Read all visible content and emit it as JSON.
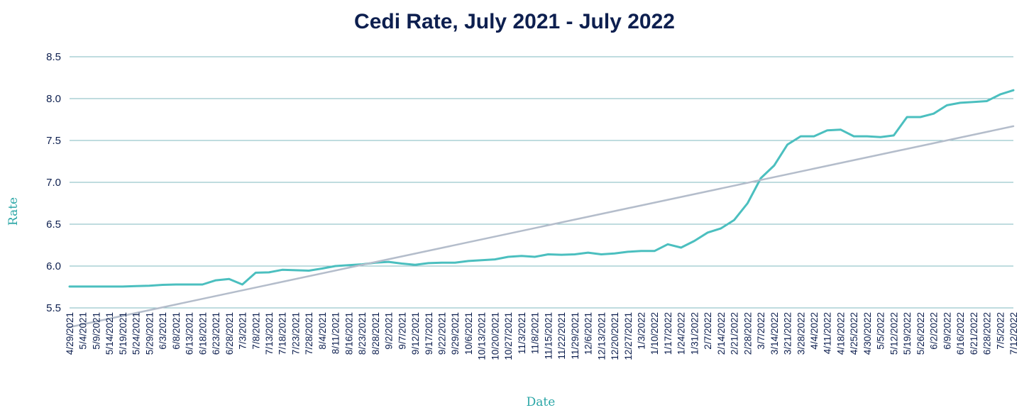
{
  "chart_data": {
    "type": "line",
    "title": "Cedi Rate, July 2021 - July 2022",
    "xlabel": "Date",
    "ylabel": "Rate",
    "ylim": [
      5.5,
      8.5
    ],
    "yticks": [
      "5.5",
      "6.0",
      "6.5",
      "7.0",
      "7.5",
      "8.0",
      "8.5"
    ],
    "grid": "horizontal",
    "legend": "none",
    "x_tick_labels": [
      "4/29/2021",
      "5/4/2021",
      "5/9/2021",
      "5/14/2021",
      "5/19/2021",
      "5/24/2021",
      "5/29/2021",
      "6/3/2021",
      "6/8/2021",
      "6/13/2021",
      "6/18/2021",
      "6/23/2021",
      "6/28/2021",
      "7/3/2021",
      "7/8/2021",
      "7/13/2021",
      "7/18/2021",
      "7/23/2021",
      "7/28/2021",
      "8/4/2021",
      "8/11/2021",
      "8/16/2021",
      "8/23/2021",
      "8/28/2021",
      "9/2/2021",
      "9/7/2021",
      "9/12/2021",
      "9/17/2021",
      "9/22/2021",
      "9/29/2021",
      "10/6/2021",
      "10/13/2021",
      "10/20/2021",
      "10/27/2021",
      "11/3/2021",
      "11/8/2021",
      "11/15/2021",
      "11/22/2021",
      "11/29/2021",
      "12/6/2021",
      "12/13/2021",
      "12/20/2021",
      "12/27/2021",
      "1/3/2022",
      "1/10/2022",
      "1/17/2022",
      "1/24/2022",
      "1/31/2022",
      "2/7/2022",
      "2/14/2022",
      "2/21/2022",
      "2/28/2022",
      "3/7/2022",
      "3/14/2022",
      "3/21/2022",
      "3/28/2022",
      "4/4/2022",
      "4/11/2022",
      "4/18/2022",
      "4/25/2022",
      "4/30/2022",
      "5/5/2022",
      "5/12/2022",
      "5/19/2022",
      "5/26/2022",
      "6/2/2022",
      "6/9/2022",
      "6/16/2022",
      "6/21/2022",
      "6/28/2022",
      "7/5/2022",
      "7/12/2022"
    ],
    "series": [
      {
        "type": "line",
        "color": "#4bbfbf",
        "points": [
          [
            "4/29/2021",
            5.755
          ],
          [
            "5/4/2021",
            5.755
          ],
          [
            "5/9/2021",
            5.755
          ],
          [
            "5/14/2021",
            5.755
          ],
          [
            "5/19/2021",
            5.755
          ],
          [
            "5/24/2021",
            5.76
          ],
          [
            "5/29/2021",
            5.765
          ],
          [
            "6/3/2021",
            5.775
          ],
          [
            "6/8/2021",
            5.78
          ],
          [
            "6/13/2021",
            5.78
          ],
          [
            "6/18/2021",
            5.78
          ],
          [
            "6/23/2021",
            5.83
          ],
          [
            "6/28/2021",
            5.845
          ],
          [
            "7/3/2021",
            5.78
          ],
          [
            "7/8/2021",
            5.92
          ],
          [
            "7/13/2021",
            5.925
          ],
          [
            "7/18/2021",
            5.955
          ],
          [
            "7/23/2021",
            5.95
          ],
          [
            "7/28/2021",
            5.945
          ],
          [
            "8/4/2021",
            5.97
          ],
          [
            "8/11/2021",
            6.0
          ],
          [
            "8/16/2021",
            6.01
          ],
          [
            "8/23/2021",
            6.02
          ],
          [
            "8/28/2021",
            6.04
          ],
          [
            "9/2/2021",
            6.05
          ],
          [
            "9/7/2021",
            6.03
          ],
          [
            "9/12/2021",
            6.015
          ],
          [
            "9/17/2021",
            6.035
          ],
          [
            "9/22/2021",
            6.04
          ],
          [
            "9/29/2021",
            6.04
          ],
          [
            "10/6/2021",
            6.06
          ],
          [
            "10/13/2021",
            6.07
          ],
          [
            "10/20/2021",
            6.08
          ],
          [
            "10/27/2021",
            6.11
          ],
          [
            "11/3/2021",
            6.12
          ],
          [
            "11/8/2021",
            6.11
          ],
          [
            "11/15/2021",
            6.14
          ],
          [
            "11/22/2021",
            6.135
          ],
          [
            "11/29/2021",
            6.14
          ],
          [
            "12/6/2021",
            6.16
          ],
          [
            "12/13/2021",
            6.14
          ],
          [
            "12/20/2021",
            6.15
          ],
          [
            "12/27/2021",
            6.17
          ],
          [
            "1/3/2022",
            6.18
          ],
          [
            "1/10/2022",
            6.18
          ],
          [
            "1/17/2022",
            6.26
          ],
          [
            "1/24/2022",
            6.22
          ],
          [
            "1/31/2022",
            6.3
          ],
          [
            "2/7/2022",
            6.4
          ],
          [
            "2/14/2022",
            6.45
          ],
          [
            "2/21/2022",
            6.55
          ],
          [
            "2/28/2022",
            6.75
          ],
          [
            "3/7/2022",
            7.05
          ],
          [
            "3/14/2022",
            7.2
          ],
          [
            "3/21/2022",
            7.45
          ],
          [
            "3/28/2022",
            7.55
          ],
          [
            "4/4/2022",
            7.55
          ],
          [
            "4/11/2022",
            7.62
          ],
          [
            "4/18/2022",
            7.63
          ],
          [
            "4/25/2022",
            7.55
          ],
          [
            "4/30/2022",
            7.55
          ],
          [
            "5/5/2022",
            7.54
          ],
          [
            "5/12/2022",
            7.56
          ],
          [
            "5/19/2022",
            7.78
          ],
          [
            "5/26/2022",
            7.78
          ],
          [
            "6/2/2022",
            7.82
          ],
          [
            "6/9/2022",
            7.92
          ],
          [
            "6/16/2022",
            7.95
          ],
          [
            "6/21/2022",
            7.96
          ],
          [
            "6/28/2022",
            7.97
          ],
          [
            "7/5/2022",
            8.05
          ],
          [
            "7/12/2022",
            8.1
          ]
        ]
      },
      {
        "type": "line",
        "color": "#b4bdcb",
        "points": [
          [
            "4/29/2021",
            5.27
          ],
          [
            "7/12/2022",
            7.67
          ]
        ]
      }
    ]
  },
  "colors": {
    "title": "#0d1f4f",
    "axis_text": "#0d1f4f",
    "axis_title": "#2aa6a6",
    "grid": "#7fb8bf",
    "series": "#4bbfbf",
    "trend": "#b4bdcb"
  }
}
